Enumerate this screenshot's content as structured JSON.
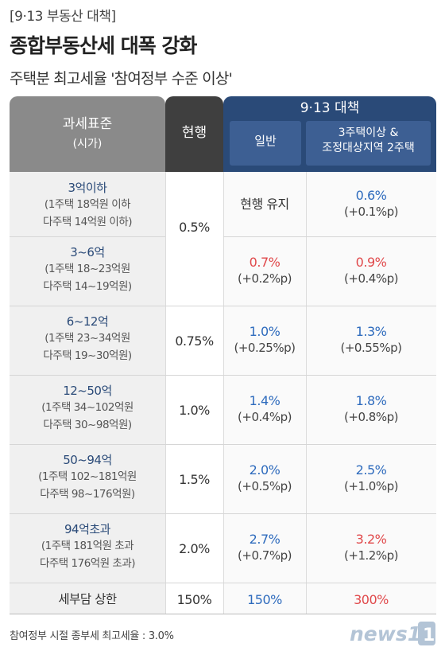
{
  "tag": "[9·13 부동산 대책]",
  "title": "종합부동산세 대폭 강화",
  "subtitle": "주택분 최고세율 '참여정부 수준 이상'",
  "chart_data": {
    "type": "table",
    "columns": {
      "tax_base": "과세표준",
      "tax_base_sub": "(시가)",
      "current": "현행",
      "policy": "9·13 대책",
      "general": "일반",
      "multi": "3주택이상 &\n조정대상지역 2주택"
    },
    "rows": [
      {
        "tier": "3억이하",
        "note1": "(1주택 18억원 이하",
        "note2": "다주택 14억원 이하)",
        "current": "0.5%",
        "general": "현행 유지",
        "general_sub": "",
        "general_color": "dark",
        "multi": "0.6%",
        "multi_sub": "(+0.1%p)",
        "multi_color": "blue"
      },
      {
        "tier": "3~6억",
        "note1": "(1주택 18~23억원",
        "note2": "다주택 14~19억원)",
        "current": "",
        "general": "0.7%",
        "general_sub": "(+0.2%p)",
        "general_color": "red",
        "multi": "0.9%",
        "multi_sub": "(+0.4%p)",
        "multi_color": "red"
      },
      {
        "tier": "6~12억",
        "note1": "(1주택 23~34억원",
        "note2": "다주택 19~30억원)",
        "current": "0.75%",
        "general": "1.0%",
        "general_sub": "(+0.25%p)",
        "general_color": "blue",
        "multi": "1.3%",
        "multi_sub": "(+0.55%p)",
        "multi_color": "blue"
      },
      {
        "tier": "12~50억",
        "note1": "(1주택 34~102억원",
        "note2": "다주택 30~98억원)",
        "current": "1.0%",
        "general": "1.4%",
        "general_sub": "(+0.4%p)",
        "general_color": "blue",
        "multi": "1.8%",
        "multi_sub": "(+0.8%p)",
        "multi_color": "blue"
      },
      {
        "tier": "50~94억",
        "note1": "(1주택 102~181억원",
        "note2": "다주택 98~176억원)",
        "current": "1.5%",
        "general": "2.0%",
        "general_sub": "(+0.5%p)",
        "general_color": "blue",
        "multi": "2.5%",
        "multi_sub": "(+1.0%p)",
        "multi_color": "blue"
      },
      {
        "tier": "94억초과",
        "note1": "(1주택 181억원 초과",
        "note2": "다주택 176억원 초과)",
        "current": "2.0%",
        "general": "2.7%",
        "general_sub": "(+0.7%p)",
        "general_color": "blue",
        "multi": "3.2%",
        "multi_sub": "(+1.2%p)",
        "multi_color": "red"
      }
    ],
    "cap_row": {
      "label": "세부담 상한",
      "current": "150%",
      "general": "150%",
      "multi": "300%"
    }
  },
  "footnote": "참여정부 시절 종부세 최고세율 : 3.0%",
  "logo": "news1",
  "colors": {
    "navy": "#2a4a78",
    "blue": "#2e6bbd",
    "red": "#e0484a",
    "logo_blue": "#b3c4d6"
  }
}
